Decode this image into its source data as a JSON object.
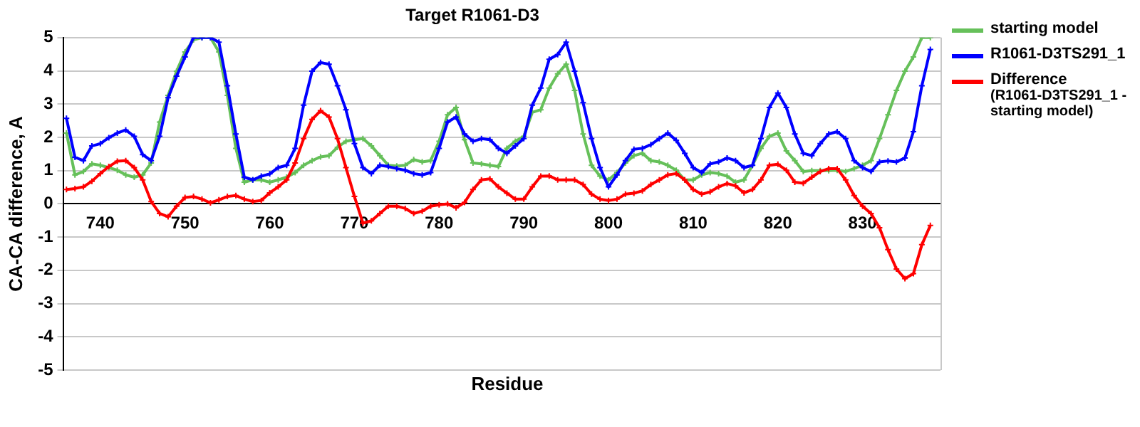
{
  "chart_data": {
    "type": "line",
    "title": "Target R1061-D3",
    "xlabel": "Residue",
    "ylabel": "CA-CA difference, A",
    "x": [
      736,
      737,
      738,
      739,
      740,
      741,
      742,
      743,
      744,
      745,
      746,
      747,
      748,
      749,
      750,
      751,
      752,
      753,
      754,
      755,
      756,
      757,
      758,
      759,
      760,
      761,
      762,
      763,
      764,
      765,
      766,
      767,
      768,
      769,
      770,
      771,
      772,
      773,
      774,
      775,
      776,
      777,
      778,
      779,
      780,
      781,
      782,
      783,
      784,
      785,
      786,
      787,
      788,
      789,
      790,
      791,
      792,
      793,
      794,
      795,
      796,
      797,
      798,
      799,
      800,
      801,
      802,
      803,
      804,
      805,
      806,
      807,
      808,
      809,
      810,
      811,
      812,
      813,
      814,
      815,
      816,
      817,
      818,
      819,
      820,
      821,
      822,
      823,
      824,
      825,
      826,
      827,
      828,
      829,
      830,
      831,
      832,
      833,
      834,
      835,
      836,
      837,
      838
    ],
    "series": [
      {
        "name": "starting model",
        "color": "#66c05a",
        "values": [
          2.13,
          0.87,
          0.97,
          1.2,
          1.16,
          1.09,
          1.01,
          0.87,
          0.8,
          0.87,
          1.23,
          2.46,
          3.26,
          3.99,
          4.57,
          4.93,
          5,
          5,
          4.57,
          3.26,
          1.67,
          0.65,
          0.72,
          0.72,
          0.65,
          0.72,
          0.8,
          0.94,
          1.16,
          1.3,
          1.41,
          1.45,
          1.7,
          1.88,
          1.93,
          1.96,
          1.74,
          1.45,
          1.16,
          1.14,
          1.16,
          1.33,
          1.26,
          1.3,
          1.88,
          2.68,
          2.9,
          1.93,
          1.23,
          1.2,
          1.16,
          1.12,
          1.67,
          1.88,
          2.03,
          2.75,
          2.83,
          3.48,
          3.91,
          4.2,
          3.41,
          2.1,
          1.16,
          0.83,
          0.72,
          0.94,
          1.23,
          1.45,
          1.52,
          1.3,
          1.26,
          1.16,
          1.01,
          0.72,
          0.72,
          0.87,
          0.94,
          0.91,
          0.83,
          0.65,
          0.72,
          1.16,
          1.67,
          2.03,
          2.13,
          1.59,
          1.3,
          0.97,
          1.0,
          1.0,
          1.0,
          1.01,
          0.97,
          1.06,
          1.16,
          1.3,
          1.96,
          2.68,
          3.41,
          3.99,
          4.42,
          5,
          5
        ]
      },
      {
        "name": "R1061-D3TS291_1",
        "color": "#0000ff",
        "values": [
          2.57,
          1.4,
          1.3,
          1.74,
          1.81,
          1.99,
          2.13,
          2.22,
          2.03,
          1.48,
          1.3,
          2.03,
          3.19,
          3.84,
          4.42,
          5,
          5,
          5,
          4.86,
          3.55,
          2.1,
          0.8,
          0.72,
          0.83,
          0.9,
          1.09,
          1.16,
          1.67,
          2.97,
          3.99,
          4.25,
          4.2,
          3.55,
          2.83,
          1.81,
          1.09,
          0.91,
          1.16,
          1.12,
          1.06,
          1.01,
          0.91,
          0.87,
          0.94,
          1.67,
          2.46,
          2.61,
          2.1,
          1.88,
          1.96,
          1.93,
          1.67,
          1.52,
          1.74,
          1.96,
          2.97,
          3.48,
          4.35,
          4.49,
          4.86,
          3.99,
          3.04,
          1.96,
          1.09,
          0.51,
          0.87,
          1.3,
          1.64,
          1.67,
          1.78,
          1.96,
          2.13,
          1.91,
          1.52,
          1.09,
          0.94,
          1.2,
          1.26,
          1.38,
          1.3,
          1.09,
          1.16,
          1.96,
          2.9,
          3.33,
          2.9,
          2.1,
          1.52,
          1.45,
          1.81,
          2.1,
          2.17,
          1.96,
          1.3,
          1.09,
          0.97,
          1.26,
          1.29,
          1.26,
          1.38,
          2.17,
          3.55,
          4.64
        ]
      },
      {
        "name": "Difference (R1061-D3TS291_1 - starting model)",
        "color": "#ff0000",
        "values": [
          0.43,
          0.46,
          0.51,
          0.68,
          0.91,
          1.12,
          1.28,
          1.3,
          1.09,
          0.72,
          0.07,
          -0.29,
          -0.39,
          -0.07,
          0.19,
          0.22,
          0.14,
          0.03,
          0.12,
          0.22,
          0.25,
          0.14,
          0.07,
          0.1,
          0.33,
          0.51,
          0.72,
          1.23,
          1.96,
          2.54,
          2.8,
          2.61,
          1.96,
          1.09,
          0.22,
          -0.58,
          -0.51,
          -0.29,
          -0.07,
          -0.07,
          -0.14,
          -0.29,
          -0.22,
          -0.07,
          -0.03,
          0,
          -0.12,
          0.04,
          0.43,
          0.72,
          0.75,
          0.51,
          0.32,
          0.14,
          0.14,
          0.51,
          0.83,
          0.84,
          0.72,
          0.72,
          0.72,
          0.58,
          0.29,
          0.14,
          0.1,
          0.14,
          0.29,
          0.32,
          0.39,
          0.58,
          0.72,
          0.87,
          0.91,
          0.72,
          0.43,
          0.29,
          0.36,
          0.51,
          0.61,
          0.54,
          0.33,
          0.43,
          0.72,
          1.16,
          1.19,
          1.01,
          0.65,
          0.62,
          0.8,
          0.97,
          1.06,
          1.06,
          0.72,
          0.25,
          -0.07,
          -0.29,
          -0.72,
          -1.38,
          -1.96,
          -2.25,
          -2.1,
          -1.23,
          -0.65
        ]
      }
    ],
    "xlim": [
      735.6,
      839.2
    ],
    "xticks": [
      740,
      750,
      760,
      770,
      780,
      790,
      800,
      810,
      820,
      830
    ],
    "ylim": [
      -5,
      5
    ],
    "yticks": [
      -5,
      -4,
      -3,
      -2,
      -1,
      0,
      1,
      2,
      3,
      4,
      5
    ],
    "grid": "y",
    "legend": "right",
    "marker": "cross",
    "line_style": "solid"
  }
}
